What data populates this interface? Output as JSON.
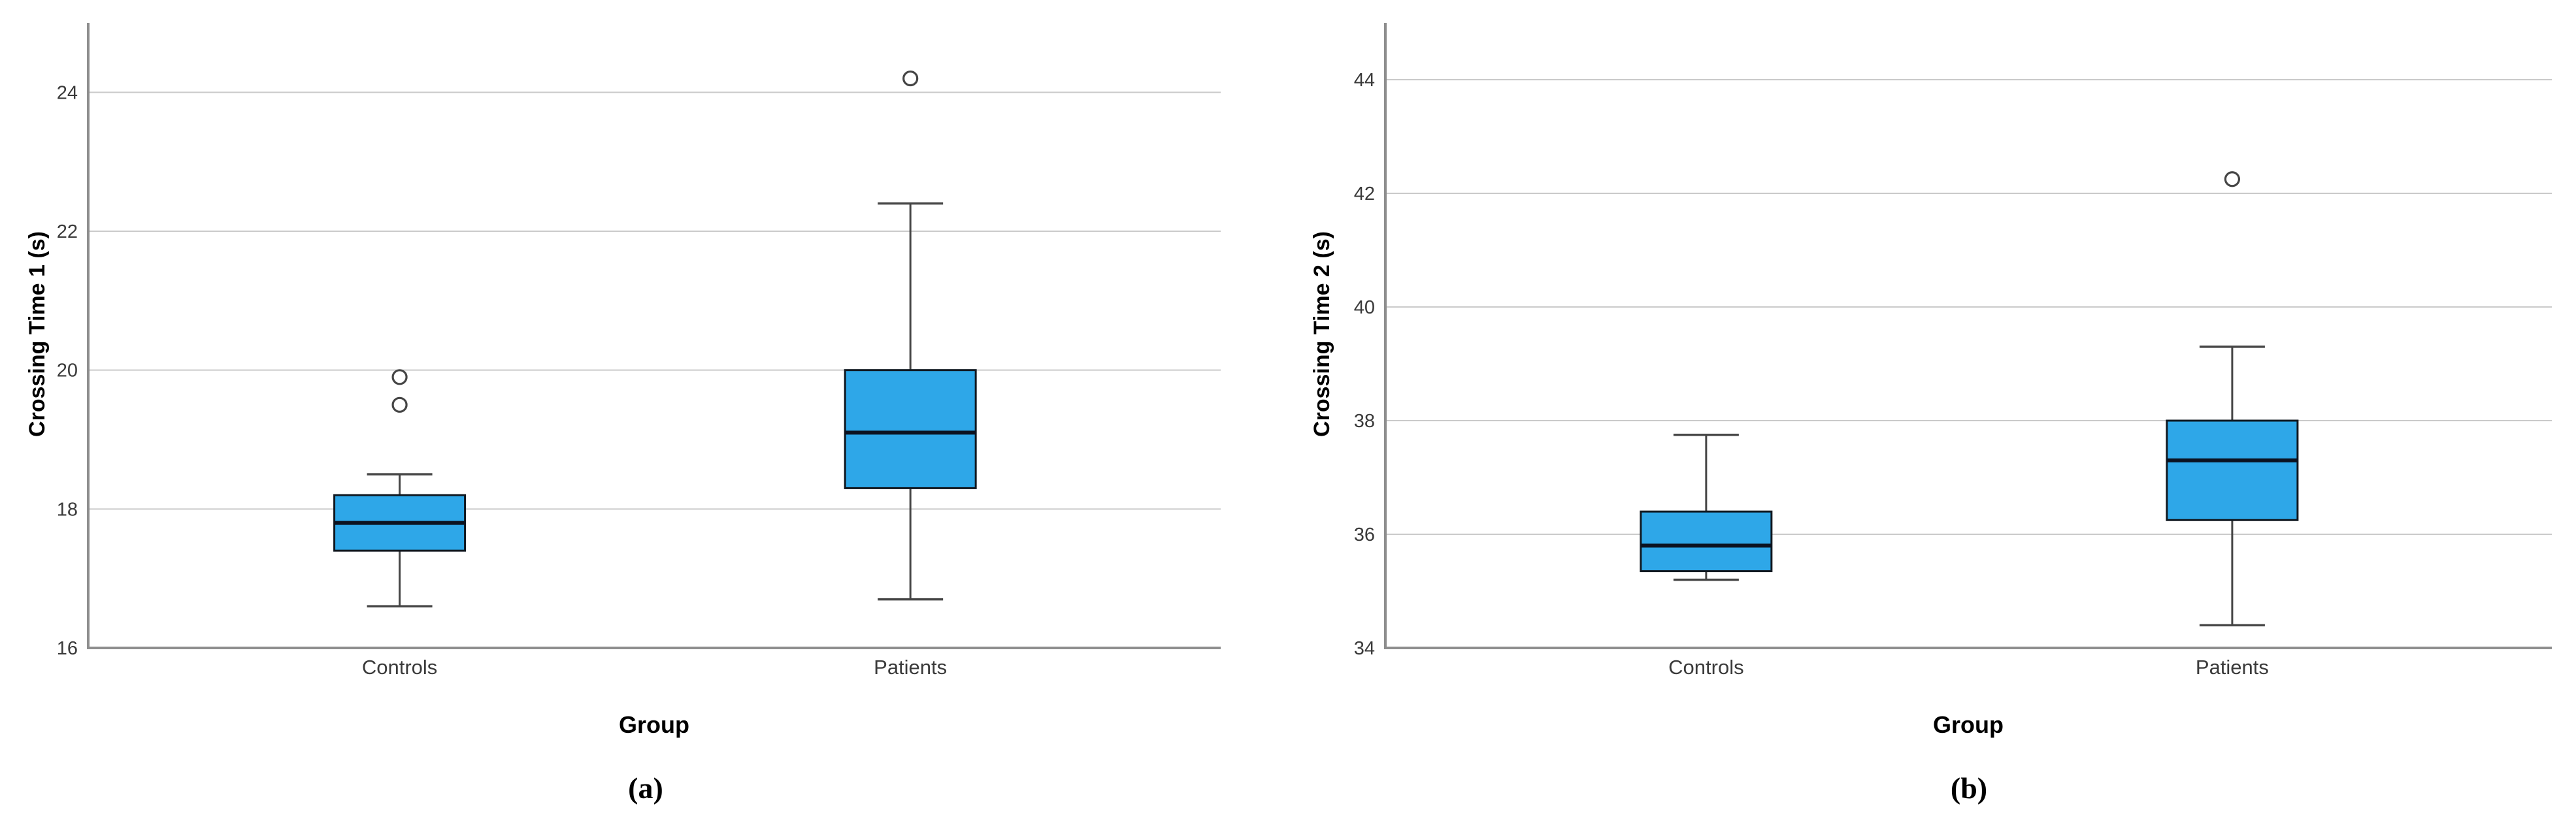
{
  "page": {
    "background": "#ffffff"
  },
  "style": {
    "box_fill": "#2EA7E8",
    "box_border": "#101820",
    "median": "#0B1220",
    "whisker": "#454545",
    "outlier_stroke": "#454545",
    "gridline": "#CACACA",
    "axis": "#8E8E8E",
    "tick_text": "#3A3A3A",
    "label_text": "#000000"
  },
  "chart_data": [
    {
      "type": "boxplot",
      "panel": "a",
      "caption": "(a)",
      "xlabel": "Group",
      "ylabel": "Crossing Time 1 (s)",
      "categories": [
        "Controls",
        "Patients"
      ],
      "ylim": [
        16,
        25
      ],
      "yticks": [
        16,
        18,
        20,
        22,
        24
      ],
      "grid": "horizontal",
      "legend": "none",
      "boxes": [
        {
          "category": "Controls",
          "whisker_low": 16.6,
          "q1": 17.4,
          "median": 17.8,
          "q3": 18.2,
          "whisker_high": 18.5,
          "outliers": [
            19.5,
            19.9
          ]
        },
        {
          "category": "Patients",
          "whisker_low": 16.7,
          "q1": 18.3,
          "median": 19.1,
          "q3": 20.0,
          "whisker_high": 22.4,
          "outliers": [
            24.2
          ]
        }
      ]
    },
    {
      "type": "boxplot",
      "panel": "b",
      "caption": "(b)",
      "xlabel": "Group",
      "ylabel": "Crossing Time 2 (s)",
      "categories": [
        "Controls",
        "Patients"
      ],
      "ylim": [
        34,
        45
      ],
      "yticks": [
        34,
        36,
        38,
        40,
        42,
        44
      ],
      "grid": "horizontal",
      "legend": "none",
      "boxes": [
        {
          "category": "Controls",
          "whisker_low": 35.2,
          "q1": 35.35,
          "median": 35.8,
          "q3": 36.4,
          "whisker_high": 37.75,
          "outliers": []
        },
        {
          "category": "Patients",
          "whisker_low": 34.4,
          "q1": 36.25,
          "median": 37.3,
          "q3": 38.0,
          "whisker_high": 39.3,
          "outliers": [
            42.25
          ]
        }
      ]
    }
  ]
}
